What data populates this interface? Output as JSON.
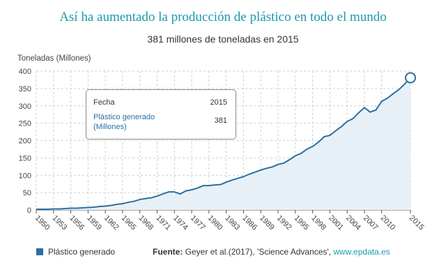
{
  "title": "Así ha aumentado la producción de plástico en todo el mundo",
  "subtitle": "381 millones de toneladas en 2015",
  "tooltip": {
    "fecha_label": "Fecha",
    "fecha_value": "2015",
    "series_label": "Plástico generado (Millones)",
    "series_value": "381"
  },
  "legend": {
    "label": "Plástico generado",
    "color": "#2a6fa0"
  },
  "source": {
    "label": "Fuente:",
    "text": " Geyer et al.(2017), 'Science Advances', ",
    "link": "www.epdata.es"
  },
  "chart_data": {
    "type": "area",
    "title": "Así ha aumentado la producción de plástico en todo el mundo",
    "subtitle": "381 millones de toneladas en 2015",
    "ylabel": "Toneladas (Millones)",
    "xlabel": "",
    "ylim": [
      0,
      400
    ],
    "yticks": [
      0,
      50,
      100,
      150,
      200,
      250,
      300,
      350,
      400
    ],
    "xlim": [
      1950,
      2015
    ],
    "xticks": [
      "1950",
      "1953",
      "1956",
      "1959",
      "1962",
      "1965",
      "1968",
      "1971",
      "1974",
      "1977",
      "1980",
      "1983",
      "1986",
      "1989",
      "1992",
      "1995",
      "1998",
      "2001",
      "2004",
      "2007",
      "2010",
      "2015"
    ],
    "grid": true,
    "legend_position": "bottom-left",
    "colors": {
      "line": "#2a6fa0",
      "fill": "#e8f0f7",
      "highlight_marker": "#2a6fa0"
    },
    "series": [
      {
        "name": "Plástico generado",
        "x": [
          1950,
          1951,
          1952,
          1953,
          1954,
          1955,
          1956,
          1957,
          1958,
          1959,
          1960,
          1961,
          1962,
          1963,
          1964,
          1965,
          1966,
          1967,
          1968,
          1969,
          1970,
          1971,
          1972,
          1973,
          1974,
          1975,
          1976,
          1977,
          1978,
          1979,
          1980,
          1981,
          1982,
          1983,
          1984,
          1985,
          1986,
          1987,
          1988,
          1989,
          1990,
          1991,
          1992,
          1993,
          1994,
          1995,
          1996,
          1997,
          1998,
          1999,
          2000,
          2001,
          2002,
          2003,
          2004,
          2005,
          2006,
          2007,
          2008,
          2009,
          2010,
          2011,
          2012,
          2013,
          2014,
          2015
        ],
        "y": [
          2,
          2,
          2,
          3,
          3,
          4,
          5,
          5,
          6,
          7,
          8,
          10,
          11,
          13,
          16,
          18,
          22,
          25,
          30,
          33,
          35,
          40,
          46,
          52,
          52,
          46,
          55,
          58,
          63,
          70,
          70,
          72,
          73,
          80,
          86,
          91,
          96,
          103,
          109,
          115,
          120,
          124,
          131,
          135,
          145,
          156,
          163,
          175,
          183,
          195,
          211,
          215,
          228,
          240,
          255,
          263,
          280,
          295,
          282,
          288,
          313,
          322,
          335,
          347,
          363,
          381
        ]
      }
    ],
    "highlight": {
      "x": 2015,
      "y": 381
    }
  }
}
